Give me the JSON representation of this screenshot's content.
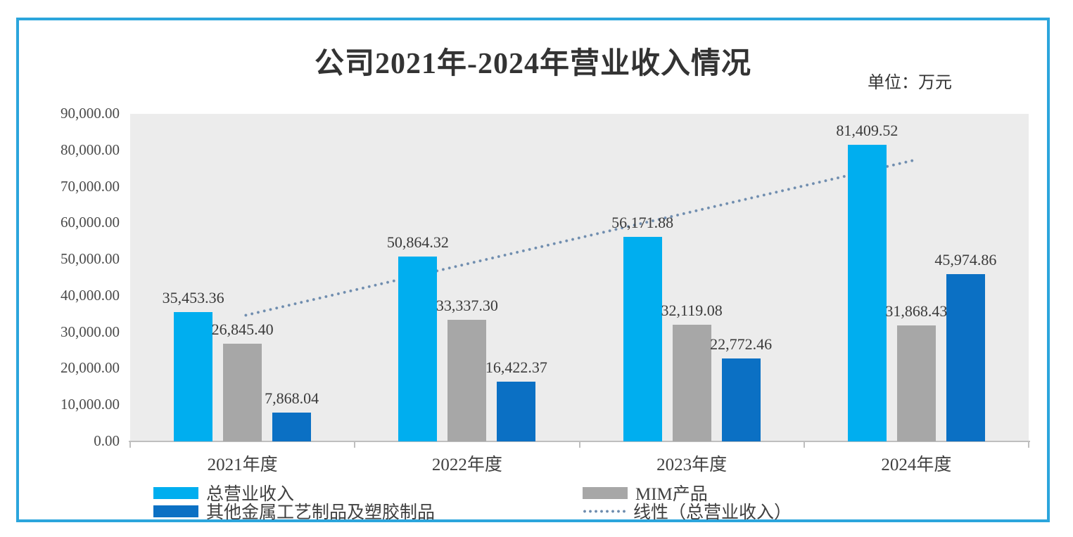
{
  "colors": {
    "frame": "#2BA5DC",
    "series1": "#00AEEF",
    "series2": "#A7A7A7",
    "series3": "#0B70C4",
    "trend": "#6E8CAE",
    "plot_bg": "#ECECEC",
    "axis": "#BFBFBF"
  },
  "chart_data": {
    "type": "bar",
    "title": "公司2021年-2024年营业收入情况",
    "unit_label": "单位：万元",
    "categories": [
      "2021年度",
      "2022年度",
      "2023年度",
      "2024年度"
    ],
    "series": [
      {
        "name": "总营业收入",
        "color_key": "series1",
        "values": [
          35453.36,
          50864.32,
          56171.88,
          81409.52
        ],
        "labels": [
          "35,453.36",
          "50,864.32",
          "56,171.88",
          "81,409.52"
        ]
      },
      {
        "name": "MIM产品",
        "color_key": "series2",
        "values": [
          26845.4,
          33337.3,
          32119.08,
          31868.43
        ],
        "labels": [
          "26,845.40",
          "33,337.30",
          "32,119.08",
          "31,868.43"
        ]
      },
      {
        "name": "其他金属工艺制品及塑胶制品",
        "color_key": "series3",
        "values": [
          7868.04,
          16422.37,
          22772.46,
          45974.86
        ],
        "labels": [
          "7,868.04",
          "16,422.37",
          "22,772.46",
          "45,974.86"
        ]
      }
    ],
    "trendline": {
      "name": "线性（总营业收入）",
      "based_on": "总营业收入",
      "style": "dotted"
    },
    "ylim": [
      0,
      90000
    ],
    "ytick_step": 10000,
    "ytick_labels": [
      "0.00",
      "10,000.00",
      "20,000.00",
      "30,000.00",
      "40,000.00",
      "50,000.00",
      "60,000.00",
      "70,000.00",
      "80,000.00",
      "90,000.00"
    ],
    "grid": false,
    "legend_position": "bottom"
  }
}
